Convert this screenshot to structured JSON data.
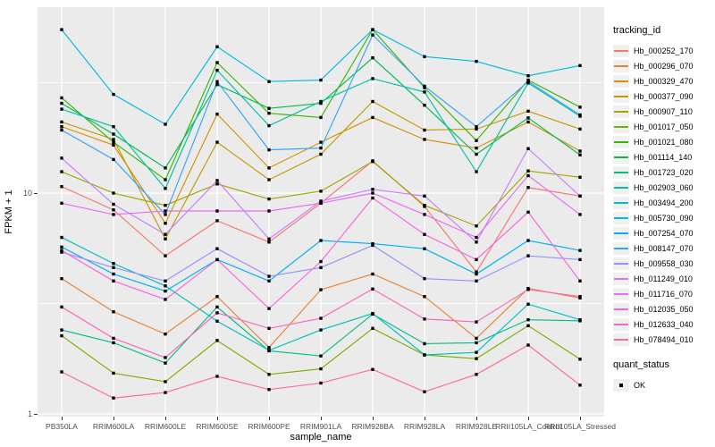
{
  "chart_data": {
    "type": "line",
    "title": "",
    "xlabel": "sample_name",
    "ylabel": "FPKM + 1",
    "y_scale": "log10",
    "ylim": [
      0.97,
      69
    ],
    "grid": "on",
    "legend_position": "right",
    "panel_bg": "#EBEBEB",
    "grid_color": "#FFFFFF",
    "y_ticks": [
      {
        "label": "1",
        "value": 1
      },
      {
        "label": "10",
        "value": 10
      }
    ],
    "y_minor_ticks": [
      3.162,
      31.623
    ],
    "categories": [
      "PB350LA",
      "RRIM600LA",
      "RRIM600LE",
      "RRIM600SE",
      "RRIM600PE",
      "RRIM901LA",
      "RRIM928BA",
      "RRIM928LA",
      "RRIM928LE",
      "RRII105LA_Control",
      "RRII105LA_Stressed"
    ],
    "legend_title": "tracking_id",
    "point_shape": "filled-square",
    "point_color": "#000000",
    "series": [
      {
        "name": "Hb_000252_170",
        "color": "#F8766D",
        "values": [
          10.7,
          8.4,
          5.2,
          7.5,
          6.0,
          9.0,
          14.0,
          8.7,
          4.4,
          10.6,
          9.7
        ]
      },
      {
        "name": "Hb_000296_070",
        "color": "#EA8331",
        "values": [
          4.1,
          2.9,
          2.3,
          3.4,
          2.0,
          3.65,
          4.3,
          3.4,
          2.2,
          3.7,
          3.35
        ]
      },
      {
        "name": "Hb_000329_470",
        "color": "#D89000",
        "values": [
          20.0,
          16.5,
          7.3,
          22.8,
          13.0,
          17.0,
          22.0,
          17.5,
          16.0,
          21.0,
          15.5
        ]
      },
      {
        "name": "Hb_000377_090",
        "color": "#C09B00",
        "values": [
          21.0,
          17.5,
          6.2,
          17.0,
          11.5,
          15.0,
          26.0,
          19.3,
          19.5,
          23.5,
          19.5
        ]
      },
      {
        "name": "Hb_000907_110",
        "color": "#A3A500",
        "values": [
          12.5,
          10.0,
          8.8,
          11.0,
          9.4,
          10.2,
          13.9,
          8.8,
          7.1,
          12.6,
          11.8
        ]
      },
      {
        "name": "Hb_001017_050",
        "color": "#7CAE00",
        "values": [
          2.26,
          1.53,
          1.4,
          2.15,
          1.51,
          1.6,
          2.44,
          1.85,
          1.78,
          2.51,
          1.77
        ]
      },
      {
        "name": "Hb_001021_080",
        "color": "#39B600",
        "values": [
          27.0,
          17.0,
          11.5,
          39.0,
          23.0,
          22.0,
          55.0,
          30.0,
          17.3,
          32.5,
          24.5
        ]
      },
      {
        "name": "Hb_001114_140",
        "color": "#00BB4E",
        "values": [
          25.5,
          18.5,
          13.0,
          31.0,
          24.2,
          25.5,
          41.0,
          25.0,
          15.0,
          21.9,
          14.9
        ]
      },
      {
        "name": "Hb_001723_020",
        "color": "#00BF7D",
        "values": [
          2.4,
          2.1,
          1.7,
          3.05,
          1.93,
          1.83,
          2.83,
          2.08,
          2.1,
          2.67,
          2.64
        ]
      },
      {
        "name": "Hb_002903_060",
        "color": "#00C1A3",
        "values": [
          24.0,
          20.0,
          10.5,
          36.0,
          20.2,
          26.0,
          33.0,
          28.7,
          12.5,
          31.5,
          22.3
        ]
      },
      {
        "name": "Hb_003494_200",
        "color": "#00BFC4",
        "values": [
          6.3,
          4.8,
          3.8,
          2.63,
          1.94,
          2.4,
          2.85,
          1.85,
          1.9,
          3.14,
          2.67
        ]
      },
      {
        "name": "Hb_005730_090",
        "color": "#00BAE0",
        "values": [
          55.0,
          28.0,
          20.5,
          46.0,
          32.0,
          32.5,
          55.0,
          41.5,
          39.5,
          34.0,
          37.8
        ]
      },
      {
        "name": "Hb_007254_070",
        "color": "#00B0F6",
        "values": [
          5.7,
          4.3,
          3.6,
          5.0,
          4.0,
          6.1,
          5.9,
          5.6,
          4.3,
          6.1,
          5.5
        ]
      },
      {
        "name": "Hb_008147_070",
        "color": "#35A2FF",
        "values": [
          19.3,
          14.2,
          8.0,
          32.0,
          15.7,
          16.0,
          52.0,
          30.5,
          20.0,
          32.0,
          22.6
        ]
      },
      {
        "name": "Hb_009558_030",
        "color": "#9590FF",
        "values": [
          5.4,
          4.6,
          4.0,
          5.6,
          4.2,
          4.6,
          5.8,
          4.1,
          4.0,
          5.2,
          5.0
        ]
      },
      {
        "name": "Hb_011249_010",
        "color": "#C77CFF",
        "values": [
          14.4,
          8.9,
          6.5,
          11.4,
          6.2,
          9.2,
          10.4,
          9.7,
          6.0,
          15.9,
          9.7
        ]
      },
      {
        "name": "Hb_011716_070",
        "color": "#E76BF3",
        "values": [
          9.0,
          8.0,
          8.3,
          8.3,
          8.3,
          9.0,
          10.0,
          8.0,
          6.3,
          12.0,
          8.0
        ]
      },
      {
        "name": "Hb_012035_050",
        "color": "#FA62DB",
        "values": [
          5.5,
          4.0,
          3.3,
          5.0,
          3.0,
          4.9,
          9.5,
          6.5,
          5.0,
          8.2,
          4.0
        ]
      },
      {
        "name": "Hb_012633_040",
        "color": "#FF62BC",
        "values": [
          3.05,
          2.2,
          1.8,
          2.87,
          2.44,
          2.71,
          3.68,
          2.69,
          2.61,
          3.66,
          3.4
        ]
      },
      {
        "name": "Hb_078494_010",
        "color": "#FF6A98",
        "values": [
          1.55,
          1.18,
          1.25,
          1.48,
          1.29,
          1.38,
          1.59,
          1.26,
          1.51,
          2.05,
          1.35
        ]
      }
    ],
    "quant_status": {
      "title": "quant_status",
      "items": [
        {
          "label": "OK",
          "shape": "filled-square",
          "color": "#000000"
        }
      ]
    }
  }
}
